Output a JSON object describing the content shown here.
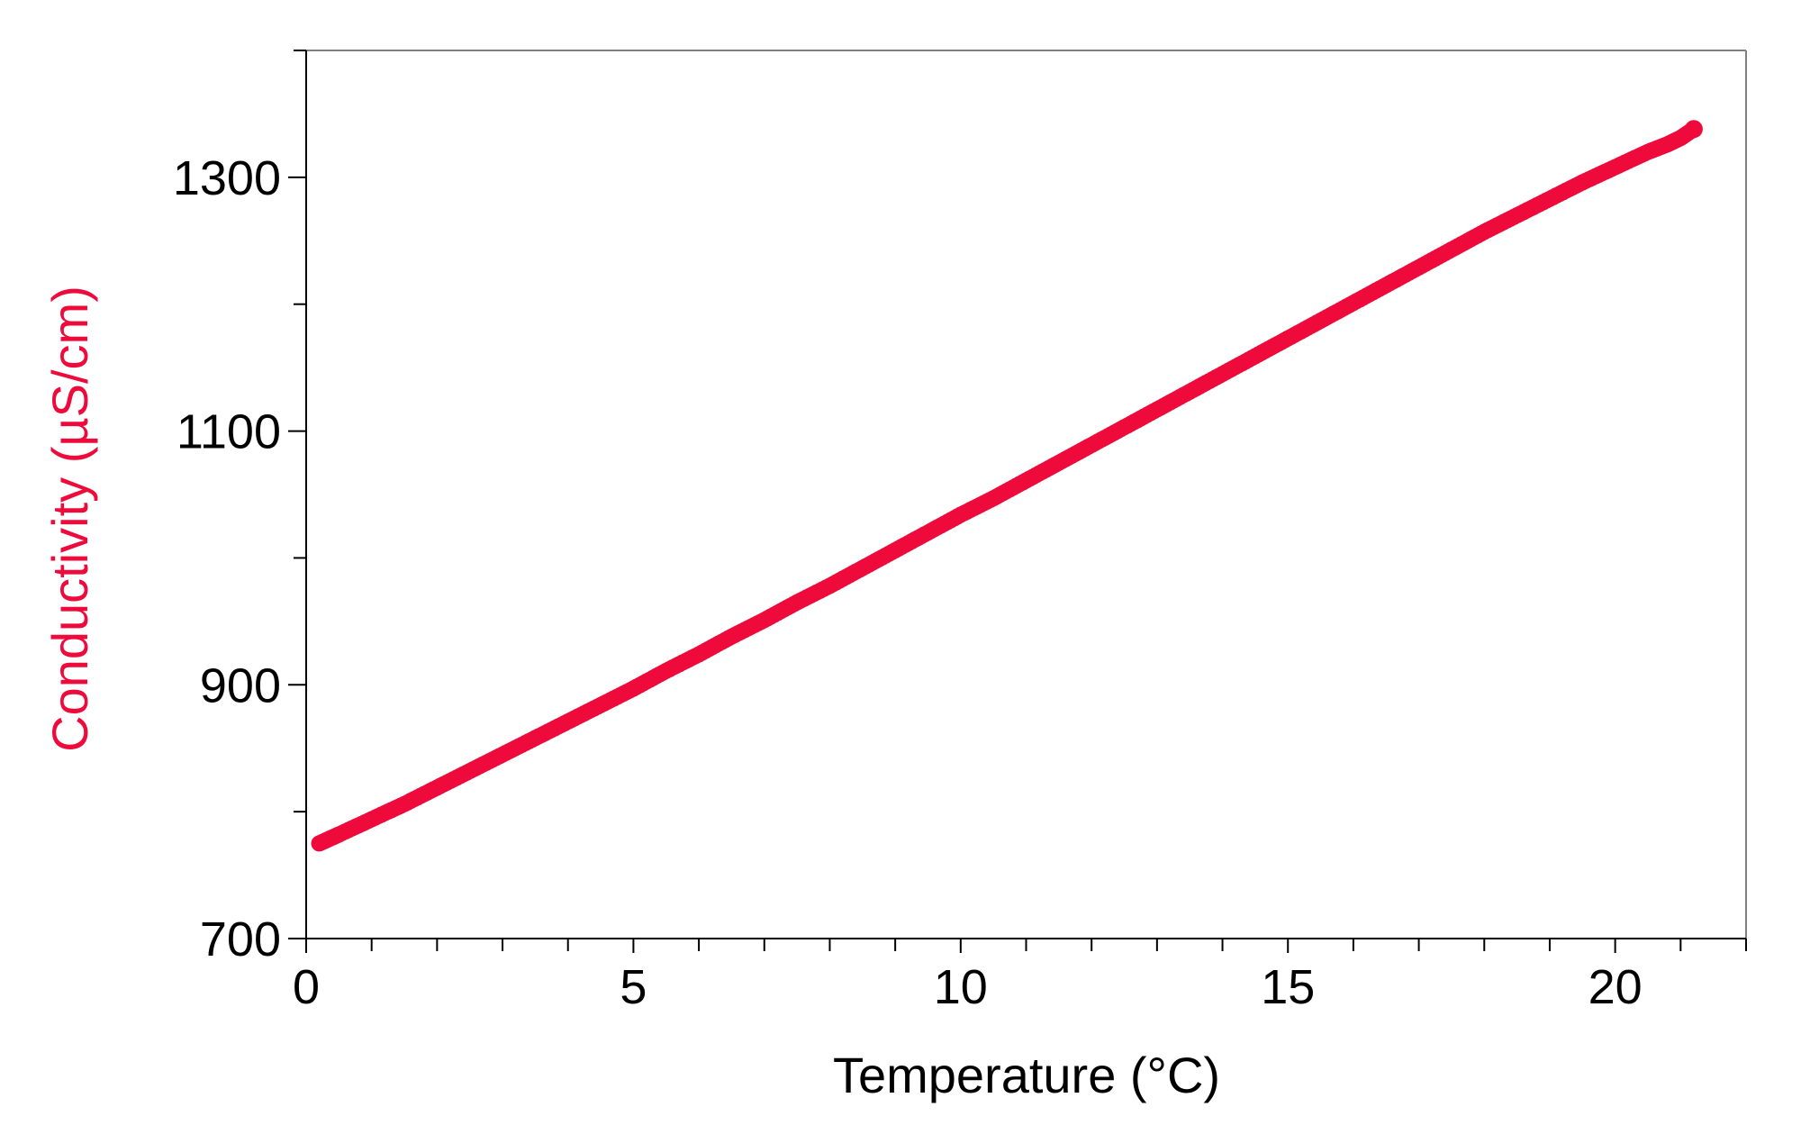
{
  "chart_data": {
    "type": "scatter",
    "title": "",
    "xlabel": "Temperature (°C)",
    "ylabel": "Conductivity (µS/cm)",
    "xlim": [
      0,
      22
    ],
    "ylim": [
      700,
      1400
    ],
    "x_ticks": [
      0,
      5,
      10,
      15,
      20
    ],
    "x_minor_step": 1,
    "y_ticks": [
      700,
      900,
      1100,
      1300
    ],
    "y_minor_step": 100,
    "grid": false,
    "legend": "none",
    "colors": {
      "series": "#EE0A3B",
      "ylabel": "#EE0A3B",
      "axis": "#000000",
      "frame": "#808080"
    },
    "series": [
      {
        "marker": "filled-circle",
        "x": [
          0.2,
          0.5,
          1.0,
          1.5,
          2.0,
          2.5,
          3.0,
          3.5,
          4.0,
          4.5,
          5.0,
          5.5,
          6.0,
          6.5,
          7.0,
          7.5,
          8.0,
          8.5,
          9.0,
          9.5,
          10.0,
          10.5,
          11.0,
          11.5,
          12.0,
          12.5,
          13.0,
          13.5,
          14.0,
          14.5,
          15.0,
          15.5,
          16.0,
          16.5,
          17.0,
          17.5,
          18.0,
          18.5,
          19.0,
          19.5,
          20.0,
          20.5,
          20.8,
          21.0,
          21.2
        ],
        "y": [
          775,
          782,
          794,
          806,
          819,
          832,
          845,
          858,
          871,
          884,
          897,
          911,
          924,
          938,
          951,
          965,
          978,
          992,
          1006,
          1020,
          1034,
          1047,
          1061,
          1075,
          1089,
          1103,
          1117,
          1131,
          1145,
          1159,
          1173,
          1187,
          1201,
          1215,
          1229,
          1243,
          1257,
          1270,
          1283,
          1296,
          1308,
          1320,
          1326,
          1331,
          1338
        ]
      }
    ]
  }
}
